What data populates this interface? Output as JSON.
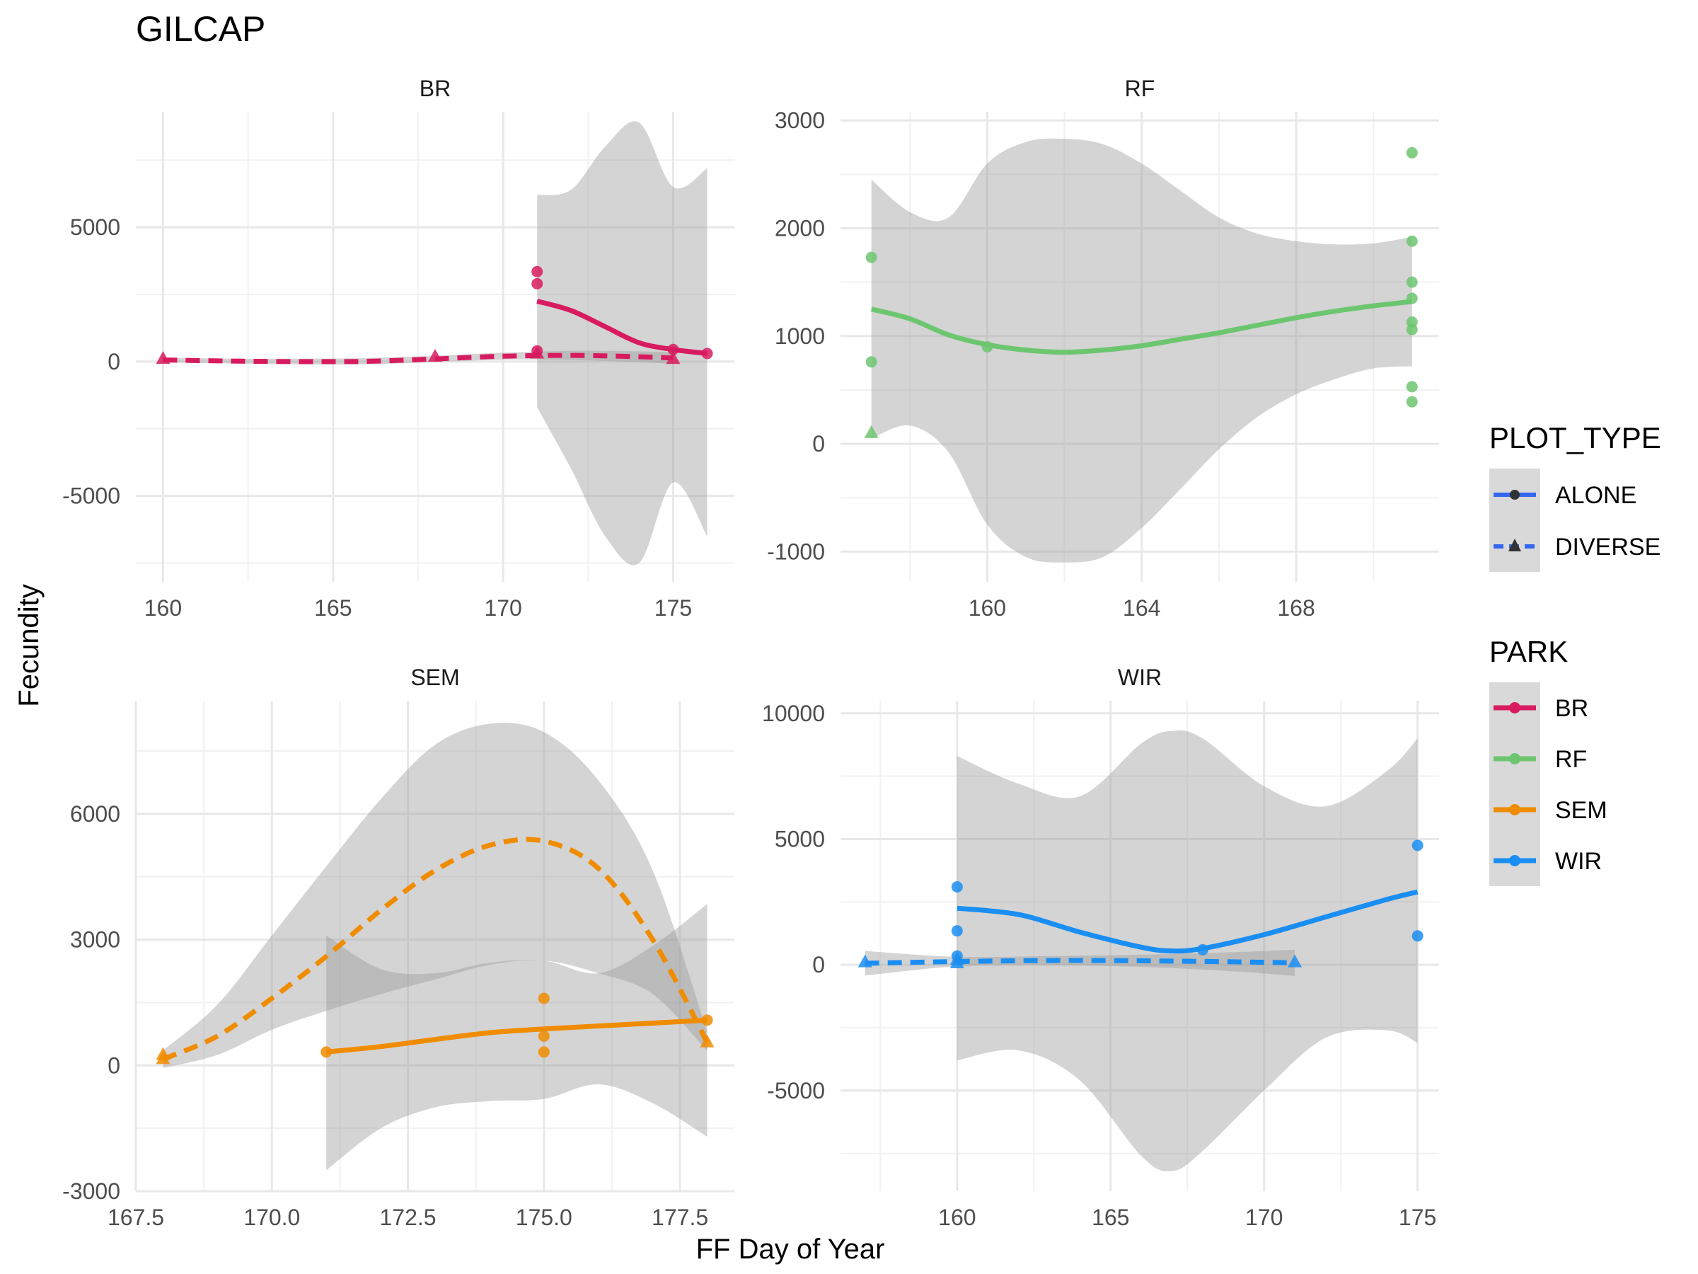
{
  "title": "GILCAP",
  "xlabel": "FF Day of Year",
  "ylabel": "Fecundity",
  "legend": {
    "plot_type": {
      "title": "PLOT_TYPE",
      "items": [
        {
          "label": "ALONE",
          "line": "solid",
          "shape": "circle"
        },
        {
          "label": "DIVERSE",
          "line": "dashed",
          "shape": "triangle"
        }
      ]
    },
    "park": {
      "title": "PARK",
      "items": [
        {
          "label": "BR",
          "color": "#d81b60"
        },
        {
          "label": "RF",
          "color": "#6cc66f"
        },
        {
          "label": "SEM",
          "color": "#f08c00"
        },
        {
          "label": "WIR",
          "color": "#1a8ef2"
        }
      ]
    },
    "placement": "right"
  },
  "chart_data": [
    {
      "type": "scatter",
      "panel": "BR",
      "color": "#d81b60",
      "xlim": [
        159.2,
        176.8
      ],
      "ylim": [
        -8200,
        9300
      ],
      "xticks": [
        160,
        165,
        170,
        175
      ],
      "yticks": [
        -5000,
        0,
        5000
      ],
      "grid": true,
      "points": [
        {
          "x": 171,
          "y": 3350,
          "type": "ALONE"
        },
        {
          "x": 171,
          "y": 2900,
          "type": "ALONE"
        },
        {
          "x": 171,
          "y": 400,
          "type": "ALONE"
        },
        {
          "x": 175,
          "y": 450,
          "type": "ALONE"
        },
        {
          "x": 176,
          "y": 300,
          "type": "ALONE"
        },
        {
          "x": 160,
          "y": 100,
          "type": "DIVERSE"
        },
        {
          "x": 168,
          "y": 180,
          "type": "DIVERSE"
        },
        {
          "x": 171,
          "y": 300,
          "type": "DIVERSE"
        },
        {
          "x": 175,
          "y": 100,
          "type": "DIVERSE"
        }
      ],
      "series": [
        {
          "name": "ALONE",
          "x": [
            171,
            172,
            173,
            174,
            175,
            176
          ],
          "y": [
            2250,
            1900,
            1300,
            700,
            450,
            300
          ],
          "upper": [
            6200,
            6400,
            8000,
            8900,
            6500,
            7200
          ],
          "lower": [
            -1700,
            -4000,
            -6500,
            -7500,
            -4500,
            -6500
          ]
        },
        {
          "name": "DIVERSE",
          "x": [
            160,
            162,
            164,
            166,
            168,
            170,
            172,
            174,
            175
          ],
          "y": [
            60,
            20,
            0,
            10,
            100,
            200,
            230,
            180,
            130
          ],
          "upper": [
            150,
            110,
            110,
            130,
            220,
            330,
            400,
            380,
            350
          ],
          "lower": [
            -30,
            -70,
            -100,
            -100,
            -20,
            70,
            60,
            -20,
            -90
          ]
        }
      ]
    },
    {
      "type": "scatter",
      "panel": "RF",
      "color": "#6cc66f",
      "xlim": [
        156.2,
        171.7
      ],
      "ylim": [
        -1280,
        3080
      ],
      "xticks": [
        160,
        164,
        168
      ],
      "yticks": [
        -1000,
        0,
        1000,
        2000,
        3000
      ],
      "grid": true,
      "points": [
        {
          "x": 157,
          "y": 1730,
          "type": "ALONE"
        },
        {
          "x": 157,
          "y": 760,
          "type": "ALONE"
        },
        {
          "x": 160,
          "y": 900,
          "type": "ALONE"
        },
        {
          "x": 171,
          "y": 2700,
          "type": "ALONE"
        },
        {
          "x": 171,
          "y": 1880,
          "type": "ALONE"
        },
        {
          "x": 171,
          "y": 1500,
          "type": "ALONE"
        },
        {
          "x": 171,
          "y": 1350,
          "type": "ALONE"
        },
        {
          "x": 171,
          "y": 1130,
          "type": "ALONE"
        },
        {
          "x": 171,
          "y": 1060,
          "type": "ALONE"
        },
        {
          "x": 171,
          "y": 530,
          "type": "ALONE"
        },
        {
          "x": 171,
          "y": 390,
          "type": "ALONE"
        },
        {
          "x": 157,
          "y": 100,
          "type": "DIVERSE"
        }
      ],
      "series": [
        {
          "name": "ALONE",
          "x": [
            157,
            158,
            159,
            160,
            161,
            162,
            163,
            164,
            165,
            166,
            167,
            168,
            169,
            170,
            171
          ],
          "y": [
            1250,
            1160,
            1010,
            920,
            870,
            850,
            870,
            910,
            970,
            1030,
            1100,
            1170,
            1230,
            1280,
            1320
          ],
          "upper": [
            2450,
            2150,
            2100,
            2600,
            2800,
            2830,
            2780,
            2600,
            2350,
            2100,
            1950,
            1880,
            1850,
            1860,
            1920
          ],
          "lower": [
            50,
            170,
            -80,
            -750,
            -1050,
            -1100,
            -1050,
            -780,
            -420,
            -50,
            250,
            460,
            600,
            700,
            720
          ]
        }
      ]
    },
    {
      "type": "scatter",
      "panel": "SEM",
      "color": "#f08c00",
      "xlim": [
        167.5,
        178.5
      ],
      "ylim": [
        -3000,
        8700
      ],
      "xticks": [
        167.5,
        170.0,
        172.5,
        175.0,
        177.5
      ],
      "yticks": [
        -3000,
        0,
        3000,
        6000
      ],
      "grid": true,
      "points": [
        {
          "x": 171,
          "y": 320,
          "type": "ALONE"
        },
        {
          "x": 175,
          "y": 1600,
          "type": "ALONE"
        },
        {
          "x": 175,
          "y": 700,
          "type": "ALONE"
        },
        {
          "x": 175,
          "y": 320,
          "type": "ALONE"
        },
        {
          "x": 178,
          "y": 1080,
          "type": "ALONE"
        },
        {
          "x": 168,
          "y": 250,
          "type": "DIVERSE"
        },
        {
          "x": 168,
          "y": 150,
          "type": "DIVERSE"
        },
        {
          "x": 178,
          "y": 550,
          "type": "DIVERSE"
        }
      ],
      "series": [
        {
          "name": "ALONE",
          "x": [
            171,
            172,
            173,
            174,
            175,
            176,
            177,
            178
          ],
          "y": [
            320,
            450,
            620,
            780,
            870,
            940,
            1010,
            1080
          ],
          "upper": [
            3100,
            2300,
            2200,
            2450,
            2500,
            2200,
            2850,
            3850
          ],
          "lower": [
            -2500,
            -1500,
            -1000,
            -850,
            -800,
            -450,
            -900,
            -1700
          ]
        },
        {
          "name": "DIVERSE",
          "x": [
            168,
            169,
            170,
            171,
            172,
            173,
            174,
            175,
            176,
            177,
            178
          ],
          "y": [
            150,
            700,
            1600,
            2600,
            3700,
            4650,
            5250,
            5350,
            4700,
            3000,
            550
          ],
          "upper": [
            360,
            1450,
            3100,
            4750,
            6350,
            7650,
            8150,
            7950,
            6800,
            4650,
            800
          ],
          "lower": [
            -60,
            250,
            850,
            1300,
            1700,
            2050,
            2400,
            2500,
            2200,
            1700,
            350
          ]
        }
      ]
    },
    {
      "type": "scatter",
      "panel": "WIR",
      "color": "#1a8ef2",
      "xlim": [
        156.2,
        175.7
      ],
      "ylim": [
        -9000,
        10500
      ],
      "xticks": [
        160,
        165,
        170,
        175
      ],
      "yticks": [
        -5000,
        0,
        5000,
        10000
      ],
      "grid": true,
      "points": [
        {
          "x": 160,
          "y": 3100,
          "type": "ALONE"
        },
        {
          "x": 160,
          "y": 1350,
          "type": "ALONE"
        },
        {
          "x": 160,
          "y": 350,
          "type": "ALONE"
        },
        {
          "x": 168,
          "y": 600,
          "type": "ALONE"
        },
        {
          "x": 175,
          "y": 4750,
          "type": "ALONE"
        },
        {
          "x": 175,
          "y": 1150,
          "type": "ALONE"
        },
        {
          "x": 157,
          "y": 100,
          "type": "DIVERSE"
        },
        {
          "x": 160,
          "y": 200,
          "type": "DIVERSE"
        },
        {
          "x": 160,
          "y": 60,
          "type": "DIVERSE"
        },
        {
          "x": 171,
          "y": 100,
          "type": "DIVERSE"
        }
      ],
      "series": [
        {
          "name": "ALONE",
          "x": [
            160,
            162,
            164,
            166,
            167,
            168,
            170,
            172,
            174,
            175
          ],
          "y": [
            2250,
            2000,
            1300,
            700,
            550,
            650,
            1200,
            1900,
            2600,
            2900
          ],
          "upper": [
            8300,
            7200,
            6700,
            8800,
            9300,
            9000,
            7100,
            6300,
            7700,
            9000
          ],
          "lower": [
            -3800,
            -3400,
            -4600,
            -7600,
            -8200,
            -7400,
            -5000,
            -2900,
            -2600,
            -3100
          ]
        },
        {
          "name": "DIVERSE",
          "x": [
            157,
            160,
            163,
            166,
            169,
            171
          ],
          "y": [
            60,
            130,
            170,
            160,
            120,
            80
          ],
          "upper": [
            550,
            320,
            350,
            400,
            500,
            600
          ],
          "lower": [
            -430,
            -60,
            -10,
            -80,
            -260,
            -440
          ]
        }
      ]
    }
  ]
}
